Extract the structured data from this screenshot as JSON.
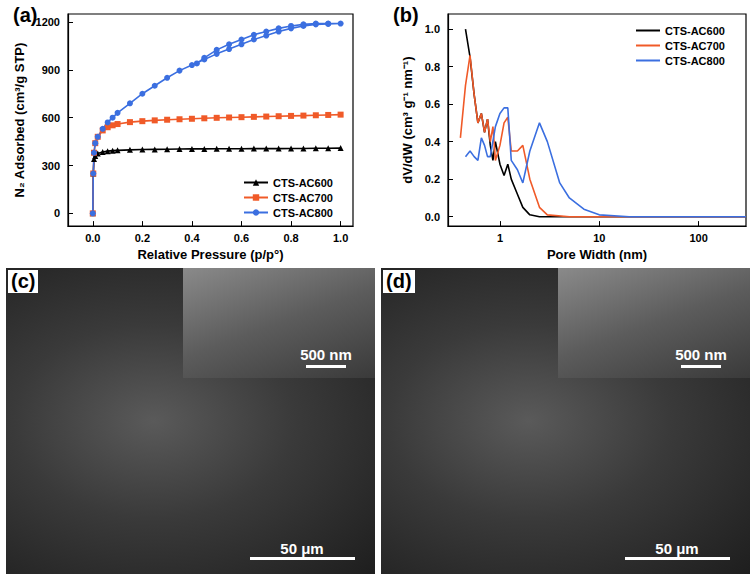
{
  "chart_data": [
    {
      "type": "line",
      "title": "(a)",
      "xlabel": "Relative Pressure (p/p°)",
      "ylabel": "N₂ Adsorbed (cm³/g STP)",
      "xlim": [
        -0.1,
        1.05
      ],
      "xticks": [
        {
          "value": 0,
          "label": "0.0"
        },
        {
          "value": 0.2,
          "label": "0.2"
        },
        {
          "value": 0.4,
          "label": "0.4"
        },
        {
          "value": 0.6,
          "label": "0.6"
        },
        {
          "value": 0.8,
          "label": "0.8"
        },
        {
          "value": 1,
          "label": "1.0"
        }
      ],
      "ylim": [
        -80,
        1250
      ],
      "yticks": [
        0,
        300,
        600,
        900,
        1200
      ],
      "legend": "lower right",
      "series": [
        {
          "name": "CTS-AC600",
          "color": "#000000",
          "marker": "triangle",
          "x": [
            0,
            0.002,
            0.005,
            0.01,
            0.02,
            0.04,
            0.06,
            0.08,
            0.1,
            0.15,
            0.2,
            0.25,
            0.3,
            0.35,
            0.4,
            0.45,
            0.5,
            0.55,
            0.6,
            0.65,
            0.7,
            0.75,
            0.8,
            0.85,
            0.9,
            0.95,
            1.0
          ],
          "values": [
            0,
            250,
            340,
            360,
            375,
            385,
            390,
            393,
            395,
            398,
            400,
            401,
            402,
            403,
            404,
            404,
            405,
            405,
            405,
            406,
            406,
            406,
            407,
            407,
            408,
            408,
            409
          ]
        },
        {
          "name": "CTS-AC700",
          "color": "#f05a28",
          "marker": "square",
          "x": [
            0,
            0.002,
            0.005,
            0.01,
            0.02,
            0.04,
            0.06,
            0.08,
            0.1,
            0.15,
            0.2,
            0.25,
            0.3,
            0.35,
            0.4,
            0.45,
            0.5,
            0.55,
            0.6,
            0.65,
            0.7,
            0.75,
            0.8,
            0.85,
            0.9,
            0.95,
            1.0
          ],
          "values": [
            0,
            250,
            380,
            440,
            480,
            520,
            540,
            552,
            560,
            572,
            578,
            583,
            587,
            590,
            593,
            596,
            599,
            601,
            603,
            605,
            607,
            609,
            611,
            613,
            615,
            617,
            619
          ]
        },
        {
          "name": "CTS-AC800",
          "color": "#3b6fe0",
          "marker": "circle",
          "x": [
            0,
            0.002,
            0.005,
            0.01,
            0.02,
            0.04,
            0.06,
            0.08,
            0.1,
            0.15,
            0.2,
            0.25,
            0.3,
            0.35,
            0.4,
            0.45,
            0.5,
            0.55,
            0.6,
            0.65,
            0.7,
            0.75,
            0.8,
            0.85,
            0.9,
            0.95,
            1.0,
            0.95,
            0.9,
            0.85,
            0.8,
            0.75,
            0.7,
            0.65,
            0.6,
            0.55,
            0.5,
            0.45,
            0.42
          ],
          "values": [
            0,
            250,
            380,
            440,
            480,
            530,
            570,
            600,
            630,
            690,
            750,
            800,
            850,
            895,
            930,
            965,
            1000,
            1030,
            1060,
            1090,
            1115,
            1140,
            1160,
            1175,
            1185,
            1188,
            1190,
            1190,
            1190,
            1185,
            1175,
            1160,
            1140,
            1120,
            1090,
            1060,
            1025,
            975,
            940
          ]
        }
      ]
    },
    {
      "type": "line",
      "title": "(b)",
      "log": "x",
      "xlabel": "Pore Width (nm)",
      "ylabel": "dV/dW (cm³ g⁻¹ nm⁻¹)",
      "xlim": [
        0.3,
        300
      ],
      "xticks": [
        1,
        10,
        100
      ],
      "ylim": [
        -0.05,
        1.08
      ],
      "yticks": [
        {
          "value": 0,
          "label": "0.0"
        },
        {
          "value": 0.2,
          "label": "0.2"
        },
        {
          "value": 0.4,
          "label": "0.4"
        },
        {
          "value": 0.6,
          "label": "0.6"
        },
        {
          "value": 0.8,
          "label": "0.8"
        },
        {
          "value": 1,
          "label": "1.0"
        }
      ],
      "legend": "upper right",
      "series": [
        {
          "name": "CTS-AC600",
          "color": "#000000",
          "x": [
            0.45,
            0.5,
            0.55,
            0.6,
            0.65,
            0.7,
            0.75,
            0.8,
            0.85,
            0.9,
            1.0,
            1.1,
            1.2,
            1.3,
            1.5,
            1.7,
            2.0,
            2.5,
            3,
            5,
            10,
            20,
            50,
            100,
            300
          ],
          "values": [
            1.0,
            0.85,
            0.65,
            0.5,
            0.55,
            0.45,
            0.52,
            0.38,
            0.3,
            0.4,
            0.28,
            0.22,
            0.28,
            0.2,
            0.12,
            0.05,
            0.01,
            0,
            0,
            0,
            0,
            0,
            0,
            0,
            0
          ]
        },
        {
          "name": "CTS-AC700",
          "color": "#f05a28",
          "x": [
            0.4,
            0.45,
            0.5,
            0.55,
            0.6,
            0.65,
            0.7,
            0.75,
            0.8,
            0.85,
            0.9,
            1.0,
            1.1,
            1.2,
            1.3,
            1.5,
            1.7,
            2.0,
            2.5,
            3,
            5,
            10,
            20,
            50,
            100,
            300
          ],
          "values": [
            0.42,
            0.7,
            0.86,
            0.65,
            0.5,
            0.55,
            0.45,
            0.52,
            0.4,
            0.48,
            0.3,
            0.38,
            0.5,
            0.53,
            0.35,
            0.35,
            0.38,
            0.2,
            0.05,
            0.01,
            0,
            0,
            0,
            0,
            0,
            0
          ]
        },
        {
          "name": "CTS-AC800",
          "color": "#3b6fe0",
          "x": [
            0.45,
            0.5,
            0.55,
            0.6,
            0.65,
            0.7,
            0.75,
            0.8,
            0.9,
            1.0,
            1.1,
            1.2,
            1.3,
            1.5,
            1.7,
            2.0,
            2.5,
            3.0,
            4,
            5,
            7,
            10,
            20,
            50,
            100,
            300
          ],
          "values": [
            0.32,
            0.35,
            0.32,
            0.3,
            0.42,
            0.38,
            0.32,
            0.32,
            0.48,
            0.55,
            0.58,
            0.58,
            0.3,
            0.25,
            0.18,
            0.35,
            0.5,
            0.4,
            0.18,
            0.1,
            0.04,
            0.01,
            0,
            0,
            0,
            0
          ]
        }
      ]
    }
  ],
  "images": [
    {
      "panel": "(c)",
      "scale_bar": "50 μm",
      "inset_scale_bar": "500 nm"
    },
    {
      "panel": "(d)",
      "scale_bar": "50 μm",
      "inset_scale_bar": "500 nm"
    }
  ]
}
